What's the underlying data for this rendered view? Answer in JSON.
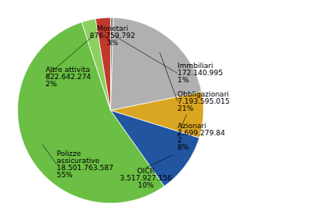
{
  "chart_data": {
    "type": "pie",
    "categories": [
      "Immbiliari",
      "Obbligazionari",
      "Azionari",
      "OICR",
      "Polizze\nassicurative",
      "Altre attivita",
      "Monetari"
    ],
    "values": [
      172140995,
      7193595015,
      2699279842,
      3517927156,
      18501763587,
      822642274,
      876759792
    ],
    "value_labels": [
      "172.140.995",
      "7.193.595.015",
      "2.699.279.84\n2",
      "3.517.927.156",
      "18.501.763.587",
      "822.642.274",
      "876.759.792"
    ],
    "percentages": [
      1,
      21,
      8,
      10,
      55,
      2,
      3
    ],
    "percentage_labels": [
      "1%",
      "21%",
      "8%",
      "10%",
      "55%",
      "2%",
      "3%"
    ],
    "colors": [
      "#8B8B8B",
      "#B0B0B0",
      "#DAA520",
      "#2255A0",
      "#6BBF44",
      "#8DCF60",
      "#C0392B"
    ]
  }
}
